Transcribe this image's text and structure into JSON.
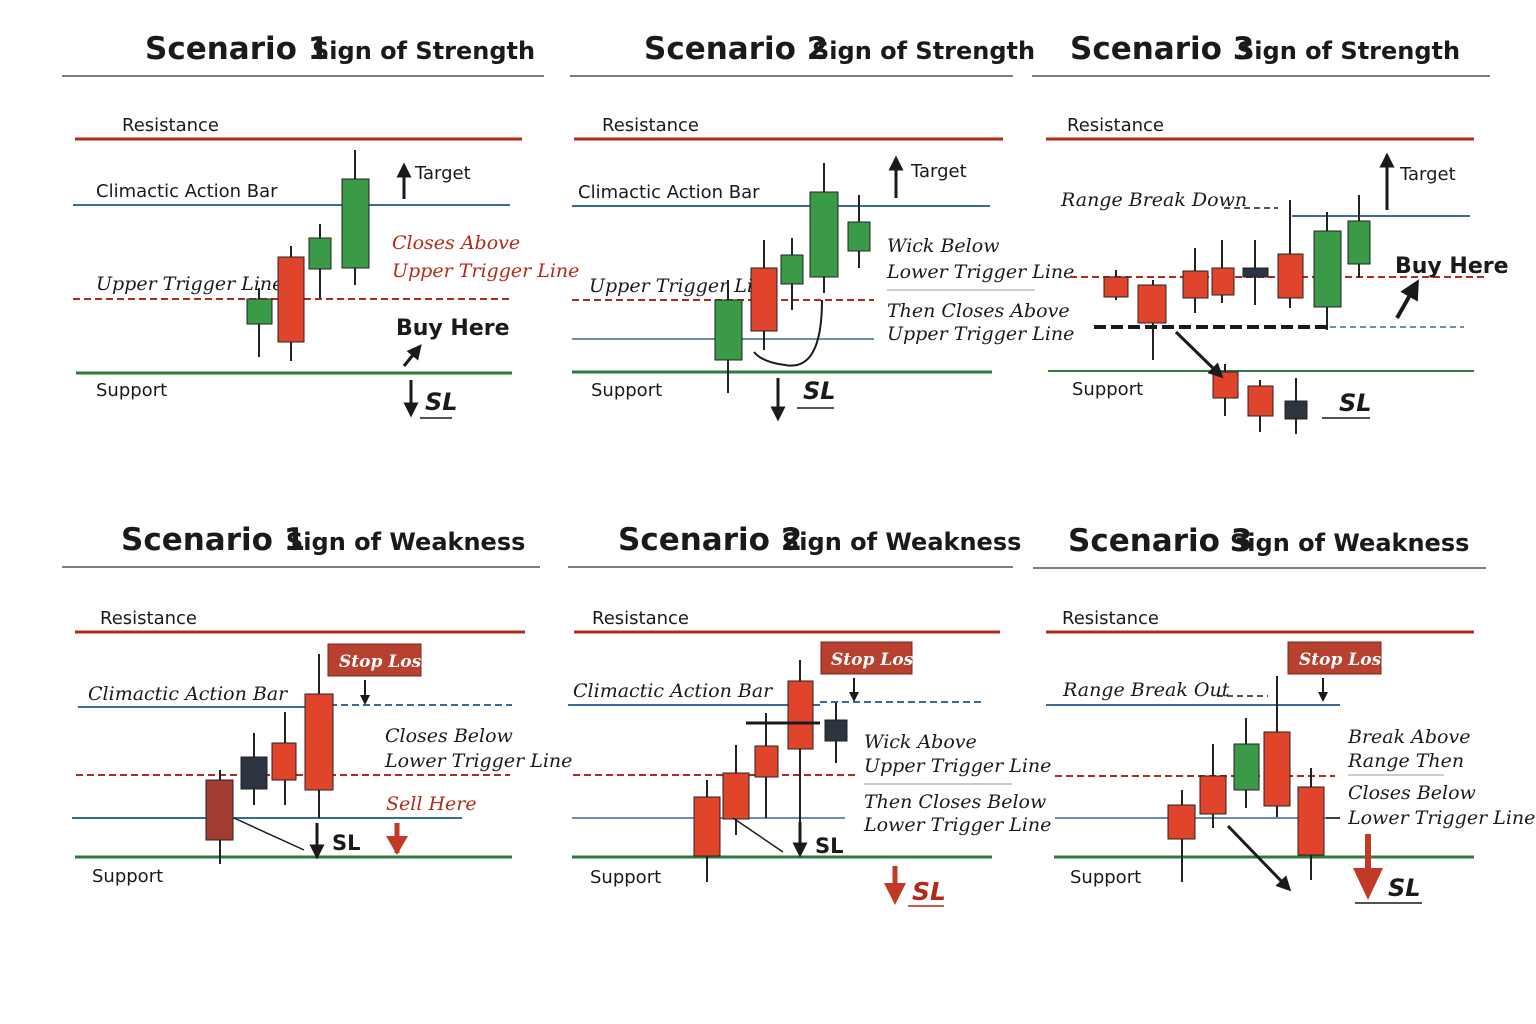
{
  "colors": {
    "resistance": "#b22a1a",
    "support": "#2e7a3c",
    "action_bar": "#3a6a9a",
    "trigger": "#b22a1a",
    "bull": "#3a9a48",
    "bear": "#e0452c",
    "doji": "#2b3440",
    "stop_loss_box": "#b8402e"
  },
  "strength": {
    "s1": {
      "title_num": "Scenario 1",
      "title_sub": "Sign of Strength",
      "resistance": "Resistance",
      "action_bar": "Climactic Action Bar",
      "upper_trigger": "Upper Trigger Line",
      "support": "Support",
      "target": "Target",
      "note_line1": "Closes Above",
      "note_line2": "Upper Trigger Line",
      "buy": "Buy Here",
      "sl": "SL"
    },
    "s2": {
      "title_num": "Scenario 2",
      "title_sub": "Sign of Strength",
      "resistance": "Resistance",
      "action_bar": "Climactic Action Bar",
      "upper_trigger": "Upper Trigger Line",
      "support": "Support",
      "target": "Target",
      "note_line1": "Wick Below",
      "note_line2": "Lower Trigger Line",
      "note_line3": "Then Closes Above",
      "note_line4": "Upper Trigger Line",
      "sl": "SL"
    },
    "s3": {
      "title_num": "Scenario 3",
      "title_sub": "Sign of Strength",
      "resistance": "Resistance",
      "range_break": "Range Break Down",
      "support": "Support",
      "target": "Target",
      "buy": "Buy Here",
      "sl": "SL"
    }
  },
  "weakness": {
    "w1": {
      "title_num": "Scenario 1",
      "title_sub": "Sign of Weakness",
      "resistance": "Resistance",
      "action_bar": "Climactic Action Bar",
      "support": "Support",
      "stop_loss": "Stop Loss",
      "note_line1": "Closes Below",
      "note_line2": "Lower Trigger Line",
      "sell": "Sell Here",
      "sl": "SL"
    },
    "w2": {
      "title_num": "Scenario 2",
      "title_sub": "Sign of Weakness",
      "resistance": "Resistance",
      "action_bar": "Climactic Action Bar",
      "support": "Support",
      "stop_loss": "Stop Loss",
      "note_line1": "Wick Above",
      "note_line2": "Upper Trigger Line",
      "note_line3": "Then Closes Below",
      "note_line4": "Lower Trigger Line",
      "sl": "SL"
    },
    "w3": {
      "title_num": "Scenario 3",
      "title_sub": "Sign of Weakness",
      "resistance": "Resistance",
      "range_break": "Range Break Out",
      "support": "Support",
      "stop_loss": "Stop Loss",
      "note_line1": "Break Above",
      "note_line2": "Range Then",
      "note_line3": "Closes Below",
      "note_line4": "Lower Trigger Line",
      "sl": "SL"
    }
  }
}
